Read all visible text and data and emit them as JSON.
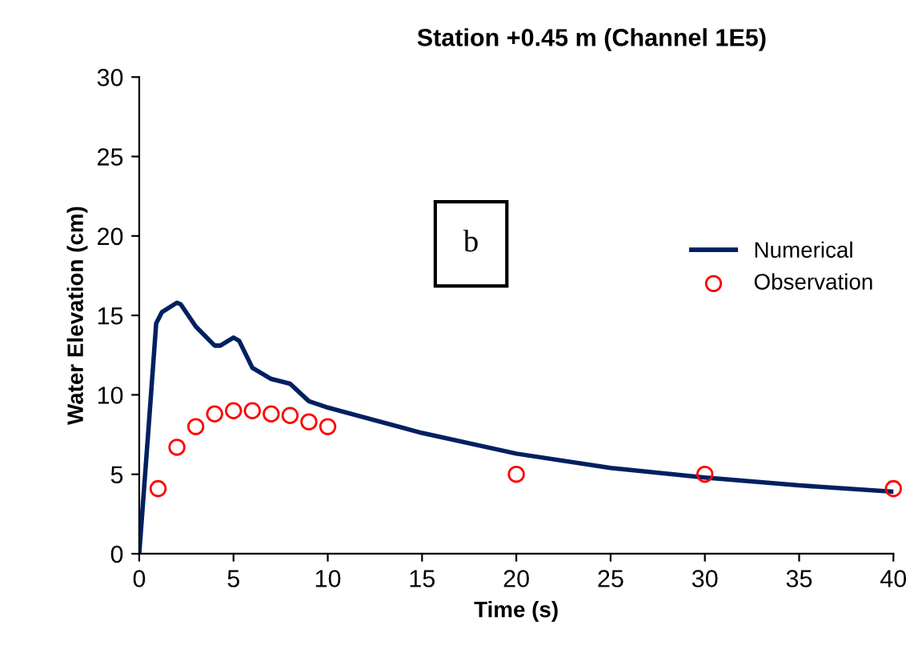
{
  "chart_data": {
    "type": "line",
    "title": "Station +0.45 m (Channel 1E5)",
    "xlabel": "Time (s)",
    "ylabel": "Water Elevation (cm)",
    "xlim": [
      0,
      40
    ],
    "xticks": [
      0,
      5,
      10,
      15,
      20,
      25,
      30,
      35,
      40
    ],
    "ylim": [
      0,
      30
    ],
    "yticks": [
      0,
      5,
      10,
      15,
      20,
      25,
      30
    ],
    "grid": false,
    "legend": "right",
    "annotations": [
      "b"
    ],
    "series": [
      {
        "name": "Numerical",
        "color": "#002060",
        "marker": "none",
        "line_style": "solid",
        "x": [
          0,
          0.5,
          0.9,
          1.2,
          2,
          2.2,
          3,
          4,
          4.3,
          5,
          5.3,
          6,
          7,
          8,
          9,
          10,
          15,
          20,
          25,
          30,
          35,
          40
        ],
        "values": [
          0,
          8,
          14.5,
          15.2,
          15.8,
          15.7,
          14.3,
          13.1,
          13.1,
          13.6,
          13.4,
          11.7,
          11.0,
          10.7,
          9.6,
          9.2,
          7.6,
          6.3,
          5.4,
          4.8,
          4.3,
          3.9
        ]
      },
      {
        "name": "Observation",
        "type": "scatter",
        "color": "#ff0000",
        "marker": "circle",
        "x": [
          1,
          2,
          3,
          4,
          5,
          6,
          7,
          8,
          9,
          10,
          20,
          30,
          40
        ],
        "values": [
          4.1,
          6.7,
          8.0,
          8.8,
          9.0,
          9.0,
          8.8,
          8.7,
          8.3,
          8.0,
          5.0,
          5.0,
          4.1
        ]
      }
    ]
  }
}
